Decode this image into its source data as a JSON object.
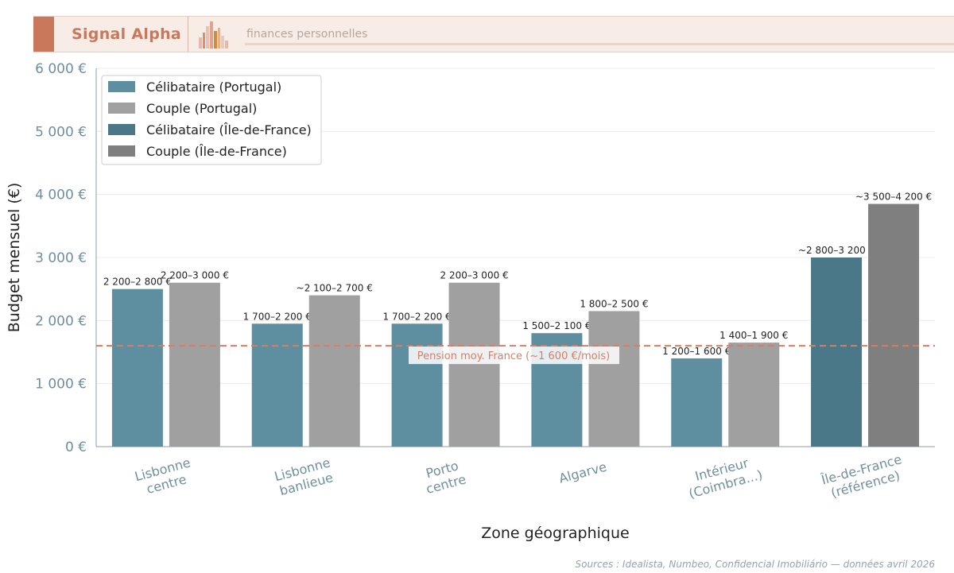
{
  "banner": {
    "brand": "Signal Alpha",
    "tagline": "finances personnelles"
  },
  "source": "Sources : Idealista, Numbeo, Confidencial Imobiliário — données avril 2026",
  "chart_data": {
    "type": "bar",
    "categories": [
      [
        "Lisbonne",
        "centre"
      ],
      [
        "Lisbonne",
        "banlieue"
      ],
      [
        "Porto",
        "centre"
      ],
      [
        "Algarve"
      ],
      [
        "Intérieur",
        "(Coimbra...)"
      ],
      [
        "Île-de-France",
        "(référence)"
      ]
    ],
    "series": [
      {
        "name": "Célibataire (Portugal)",
        "values": [
          2500,
          1950,
          1950,
          1800,
          1400,
          null
        ],
        "labels": [
          "2 200–2 800 €",
          "1 700–2 200 €",
          "1 700–2 200 €",
          "1 500–2 100 €",
          "1 200–1 600 €",
          null
        ],
        "color": "#5e8fa0"
      },
      {
        "name": "Couple (Portugal)",
        "values": [
          2600,
          2400,
          2600,
          2150,
          1650,
          null
        ],
        "labels": [
          "2 200–3 000 €",
          "~2 100–2 700 €",
          "2 200–3 000 €",
          "1 800–2 500 €",
          "1 400–1 900 €",
          null
        ],
        "color": "#a0a0a0"
      },
      {
        "name": "Célibataire (Île-de-France)",
        "values": [
          null,
          null,
          null,
          null,
          null,
          3000
        ],
        "labels": [
          null,
          null,
          null,
          null,
          null,
          "~2 800–3 200 €"
        ],
        "color": "#4a7888"
      },
      {
        "name": "Couple (Île-de-France)",
        "values": [
          null,
          null,
          null,
          null,
          null,
          3850
        ],
        "labels": [
          null,
          null,
          null,
          null,
          null,
          "~3 500–4 200 €"
        ],
        "color": "#7f7f7f"
      }
    ],
    "reference_line": {
      "value": 1600,
      "label": "Pension moy. France (~1 600 €/mois)",
      "color": "#d97d62"
    },
    "xlabel": "Zone géographique",
    "ylabel": "Budget mensuel (€)",
    "ylim": [
      0,
      6000
    ],
    "yticks": [
      0,
      1000,
      2000,
      3000,
      4000,
      5000,
      6000
    ],
    "ytick_labels": [
      "0 €",
      "1 000 €",
      "2 000 €",
      "3 000 €",
      "4 000 €",
      "5 000 €",
      "6 000 €"
    ],
    "grid": true,
    "legend_position": "top-left"
  }
}
